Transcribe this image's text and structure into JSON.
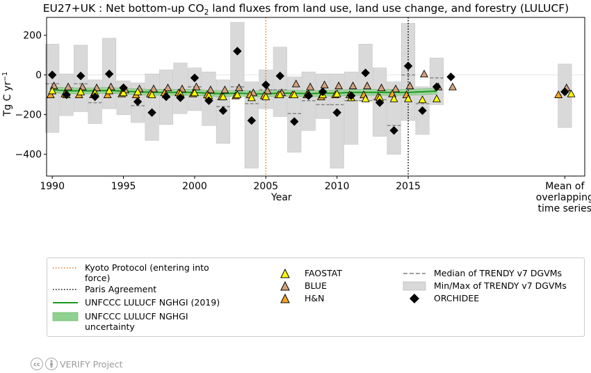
{
  "chart_data": {
    "type": "scatter",
    "title": "EU27+UK : Net bottom-up CO",
    "title_sub": "2",
    "title_rest": " land fluxes from land use, land use change, and forestry (LULUCF)",
    "ylabel": "Tg C yr",
    "ylabel_sup": "−1",
    "xlabel": "Year",
    "ylim": [
      -510,
      290
    ],
    "xlim": [
      1989.6,
      2027.4
    ],
    "yticks": [
      200,
      0,
      -200,
      -400
    ],
    "ytick_labels": [
      "200",
      "0",
      "−200",
      "−400"
    ],
    "xticks": [
      1990,
      1995,
      2000,
      2005,
      2010,
      2015
    ],
    "xtick_labels": [
      "1990",
      "1995",
      "2000",
      "2005",
      "2010",
      "2015"
    ],
    "mean_label_lines": [
      "Mean of",
      "overlapping",
      "time series"
    ],
    "mean_x": 2026,
    "years": [
      1990,
      1991,
      1992,
      1993,
      1994,
      1995,
      1996,
      1997,
      1998,
      1999,
      2000,
      2001,
      2002,
      2003,
      2004,
      2005,
      2006,
      2007,
      2008,
      2009,
      2010,
      2011,
      2012,
      2013,
      2014,
      2015,
      2016,
      2017,
      2018
    ],
    "trendy_minmax": [
      [
        -290,
        155
      ],
      [
        -205,
        5
      ],
      [
        -185,
        150
      ],
      [
        -245,
        -25
      ],
      [
        -170,
        185
      ],
      [
        -200,
        -30
      ],
      [
        -240,
        -40
      ],
      [
        -330,
        5
      ],
      [
        -250,
        25
      ],
      [
        -195,
        60
      ],
      [
        -180,
        35
      ],
      [
        -255,
        15
      ],
      [
        -345,
        -25
      ],
      [
        -100,
        265
      ],
      [
        -470,
        -35
      ],
      [
        -170,
        25
      ],
      [
        -210,
        140
      ],
      [
        -390,
        -10
      ],
      [
        -280,
        15
      ],
      [
        -220,
        5
      ],
      [
        -470,
        5
      ],
      [
        -350,
        15
      ],
      [
        -125,
        155
      ],
      [
        -310,
        35
      ],
      [
        -400,
        -35
      ],
      [
        -230,
        260
      ],
      [
        -300,
        -60
      ],
      [
        -150,
        85
      ],
      null
    ],
    "trendy_minmax_mean": [
      -265,
      55
    ],
    "trendy_median": [
      -45,
      -65,
      -45,
      -140,
      -85,
      -85,
      -155,
      -80,
      -90,
      -100,
      -60,
      -100,
      -160,
      -60,
      -145,
      -75,
      -75,
      -195,
      -130,
      -150,
      -150,
      -130,
      -130,
      -125,
      -255,
      0,
      -145,
      -15,
      null
    ],
    "trendy_median_mean": -100,
    "unfccc": [
      -75,
      -80,
      -80,
      -80,
      -78,
      -82,
      -85,
      -88,
      -88,
      -88,
      -88,
      -92,
      -95,
      -92,
      -95,
      -95,
      -92,
      -92,
      -95,
      -92,
      -92,
      -88,
      -88,
      -88,
      -88,
      -88,
      -85,
      -82,
      null
    ],
    "unfccc_uncertainty": 15,
    "faostat": [
      -80,
      -100,
      -85,
      -90,
      -80,
      -90,
      -85,
      -100,
      -100,
      -95,
      -90,
      -105,
      -110,
      -100,
      -115,
      -110,
      -100,
      -100,
      -95,
      -100,
      -95,
      -115,
      -120,
      -115,
      -120,
      -120,
      -125,
      -120,
      null
    ],
    "faostat_mean": -95,
    "blue": [
      -55,
      -60,
      -60,
      -65,
      -60,
      -75,
      -70,
      -70,
      -65,
      -70,
      -60,
      -75,
      -75,
      -65,
      -90,
      -80,
      -90,
      -45,
      -60,
      -50,
      -55,
      -55,
      -55,
      -65,
      -70,
      -55,
      5,
      -60,
      -60
    ],
    "blue_mean": -65,
    "hn": [
      -100,
      -95,
      -100,
      -100,
      -100,
      -95,
      -100,
      -95,
      -90,
      -90,
      -95,
      -100,
      -110,
      -105,
      -100,
      -105,
      -100,
      -100,
      -100,
      -110,
      -100,
      -100,
      -100,
      -110,
      -95,
      -100,
      null,
      null,
      null
    ],
    "hn_mean": -100,
    "orchidee": [
      0,
      -100,
      -5,
      -110,
      5,
      -65,
      -135,
      -190,
      -110,
      -115,
      -15,
      -130,
      -180,
      120,
      -230,
      -50,
      -5,
      -235,
      -105,
      -85,
      -190,
      -105,
      10,
      -140,
      -280,
      45,
      -180,
      -60,
      -10
    ],
    "orchidee_mean": -85,
    "kyoto_x": 2005,
    "paris_x": 2015,
    "colors": {
      "faostat": "#ffff00",
      "blue": "#d2a27d",
      "hn": "#f5a623",
      "orchidee": "#000000",
      "trendy_box": "#d9d9d9",
      "trendy_median": "#7f7f7f",
      "unfccc_line": "#1a9a1a",
      "unfccc_band": "#8fd18f",
      "kyoto": "#e07b1f",
      "paris": "#000000"
    }
  },
  "legend": {
    "kyoto_line1": "Kyoto Protocol (entering into",
    "kyoto_line2": "force)",
    "paris": "Paris Agreement",
    "unfccc_line": "UNFCCC LULUCF NGHGI (2019)",
    "unfccc_band_line1": "UNFCCC LULUCF NGHGI",
    "unfccc_band_line2": "uncertainty",
    "faostat": "FAOSTAT",
    "blue": "BLUE",
    "hn": "H&N",
    "median": "Median of TRENDY v7 DGVMs",
    "minmax": "Min/Max of TRENDY v7 DGVMs",
    "orchidee": "ORCHIDEE"
  },
  "footer": {
    "cc": "cc",
    "project": "VERIFY Project"
  }
}
